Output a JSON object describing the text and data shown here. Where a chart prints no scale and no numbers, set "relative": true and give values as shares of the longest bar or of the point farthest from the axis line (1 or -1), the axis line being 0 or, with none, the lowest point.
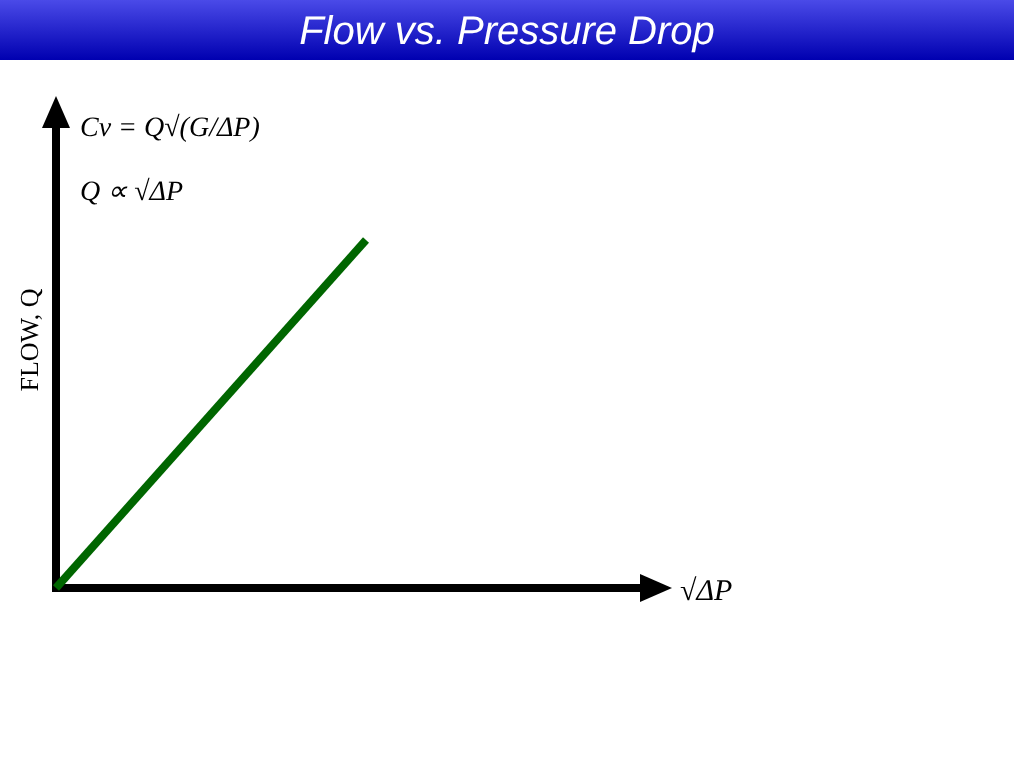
{
  "chart_data": {
    "type": "line",
    "title": "Flow vs. Pressure Drop",
    "xlabel": "√ΔP",
    "ylabel": "FLOW, Q",
    "annotations": [
      "Cv = Q√(G/ΔP)",
      "Q ∝ √ΔP"
    ],
    "relative": true,
    "categories": [
      null,
      null
    ],
    "series": [
      {
        "color": "#006600",
        "values": [
          0,
          1
        ]
      }
    ],
    "line_style": "solid"
  }
}
